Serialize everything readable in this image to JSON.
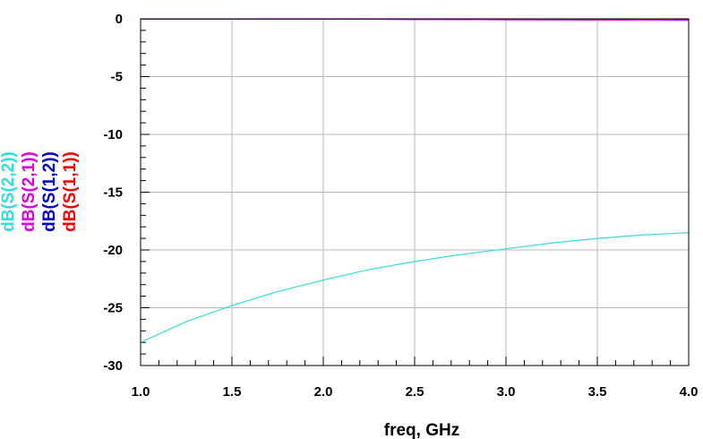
{
  "chart_data": {
    "type": "line",
    "title": "",
    "xlabel": "freq, GHz",
    "ylabel": "",
    "xlim": [
      1.0,
      4.0
    ],
    "ylim": [
      -30,
      0
    ],
    "x_ticks": [
      "1.0",
      "1.5",
      "2.0",
      "2.5",
      "3.0",
      "3.5",
      "4.0"
    ],
    "y_ticks": [
      "0",
      "-5",
      "-10",
      "-15",
      "-20",
      "-25",
      "-30"
    ],
    "grid": true,
    "legend_placement": "left, rotated vertical",
    "series": [
      {
        "name": "dB(S(1,1))",
        "color": "#ff0000",
        "x": [
          1.0,
          1.5,
          2.0,
          2.5,
          3.0,
          3.5,
          4.0
        ],
        "values": [
          -0.01,
          -0.01,
          -0.01,
          -0.02,
          -0.02,
          -0.02,
          -0.03
        ]
      },
      {
        "name": "dB(S(1,2))",
        "color": "#0000cc",
        "x": [
          1.0,
          1.5,
          2.0,
          2.5,
          3.0,
          3.5,
          4.0
        ],
        "values": [
          -0.01,
          -0.01,
          -0.02,
          -0.05,
          -0.08,
          -0.1,
          -0.12
        ]
      },
      {
        "name": "dB(S(2,1))",
        "color": "#e000e0",
        "x": [
          1.0,
          1.5,
          2.0,
          2.5,
          3.0,
          3.5,
          4.0
        ],
        "values": [
          -0.01,
          -0.01,
          -0.02,
          -0.05,
          -0.08,
          -0.1,
          -0.12
        ]
      },
      {
        "name": "dB(S(2,2))",
        "color": "#33dddd",
        "x": [
          1.0,
          1.25,
          1.5,
          1.75,
          2.0,
          2.25,
          2.5,
          2.75,
          3.0,
          3.25,
          3.5,
          3.75,
          4.0
        ],
        "values": [
          -28.0,
          -26.2,
          -24.8,
          -23.6,
          -22.6,
          -21.7,
          -21.0,
          -20.4,
          -19.9,
          -19.4,
          -19.0,
          -18.7,
          -18.5
        ]
      }
    ]
  }
}
